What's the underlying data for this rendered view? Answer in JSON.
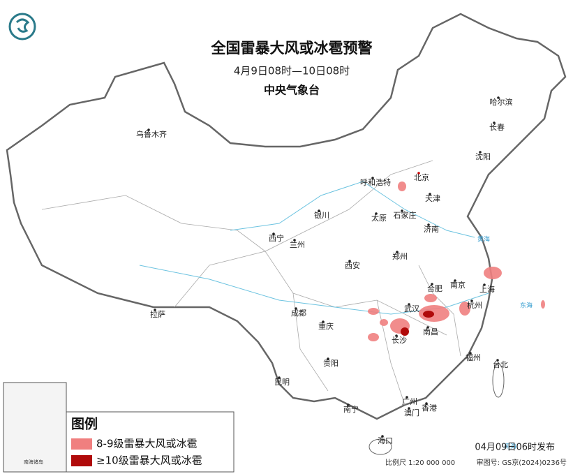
{
  "header": {
    "title": "全国雷暴大风或冰雹预警",
    "subtitle": "4月9日08时—10日08时",
    "issuer": "中央气象台"
  },
  "cities": [
    "乌鲁木齐",
    "哈尔滨",
    "长春",
    "沈阳",
    "北京",
    "呼和浩特",
    "天津",
    "银川",
    "太原",
    "石家庄",
    "济南",
    "西宁",
    "兰州",
    "西安",
    "郑州",
    "合肥",
    "南京",
    "上海",
    "武汉",
    "杭州",
    "拉萨",
    "成都",
    "重庆",
    "长沙",
    "南昌",
    "贵阳",
    "福州",
    "台北",
    "昆明",
    "南宁",
    "广州",
    "澳门",
    "香港",
    "海口"
  ],
  "seas": [
    "黄海",
    "东海",
    "南海"
  ],
  "inset": {
    "label": "南海诸岛"
  },
  "legend": {
    "title": "图例",
    "items": [
      {
        "label": "8-9级雷暴大风或冰雹",
        "color": "#f07f7f"
      },
      {
        "label": "≥10级雷暴大风或冰雹",
        "color": "#b00a0a"
      }
    ]
  },
  "footer": {
    "issued": "04月09日06时发布",
    "scale": "比例尺 1:20 000 000",
    "approval": "审图号: GS京(2024)0236号"
  }
}
